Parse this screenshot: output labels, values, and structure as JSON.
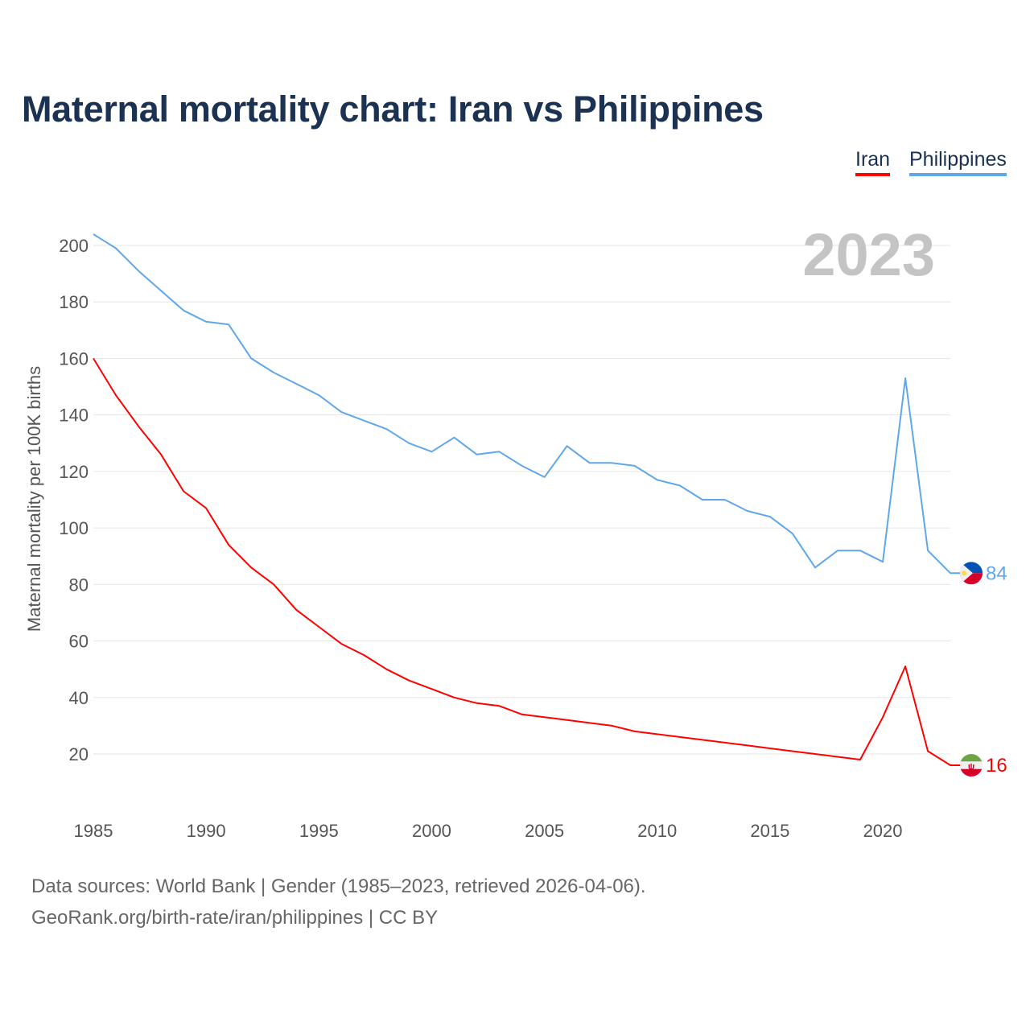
{
  "chart_data": {
    "type": "line",
    "title": "Maternal mortality chart: Iran vs Philippines",
    "year_label": "2023",
    "ylabel": "Maternal mortality per 100K births",
    "xlabel": "",
    "ylim": [
      0,
      210
    ],
    "xlim": [
      1985,
      2023
    ],
    "yticks": [
      20,
      40,
      60,
      80,
      100,
      120,
      140,
      160,
      180,
      200
    ],
    "xticks": [
      1985,
      1990,
      1995,
      2000,
      2005,
      2010,
      2015,
      2020
    ],
    "grid": true,
    "legend_position": "top-right",
    "x": [
      1985,
      1986,
      1987,
      1988,
      1989,
      1990,
      1991,
      1992,
      1993,
      1994,
      1995,
      1996,
      1997,
      1998,
      1999,
      2000,
      2001,
      2002,
      2003,
      2004,
      2005,
      2006,
      2007,
      2008,
      2009,
      2010,
      2011,
      2012,
      2013,
      2014,
      2015,
      2016,
      2017,
      2018,
      2019,
      2020,
      2021,
      2022,
      2023
    ],
    "series": [
      {
        "name": "Iran",
        "color": "#ff0000",
        "end_label": "16",
        "flag": "iran-flag",
        "values": [
          160,
          147,
          136,
          126,
          113,
          107,
          94,
          86,
          80,
          71,
          65,
          59,
          55,
          50,
          46,
          43,
          40,
          38,
          37,
          34,
          33,
          32,
          31,
          30,
          28,
          27,
          26,
          25,
          24,
          23,
          22,
          21,
          20,
          19,
          18,
          33,
          51,
          21,
          16
        ]
      },
      {
        "name": "Philippines",
        "color": "#5fa7ea",
        "end_label": "84",
        "flag": "philippines-flag",
        "values": [
          204,
          199,
          191,
          184,
          177,
          173,
          172,
          160,
          155,
          151,
          147,
          141,
          138,
          135,
          130,
          127,
          132,
          126,
          127,
          122,
          118,
          129,
          123,
          123,
          122,
          117,
          115,
          110,
          110,
          106,
          104,
          98,
          86,
          92,
          92,
          88,
          153,
          92,
          84
        ]
      }
    ]
  },
  "footer": {
    "line1": "Data sources: World Bank | Gender (1985–2023, retrieved 2026-04-06).",
    "line2": "GeoRank.org/birth-rate/iran/philippines | CC BY"
  }
}
